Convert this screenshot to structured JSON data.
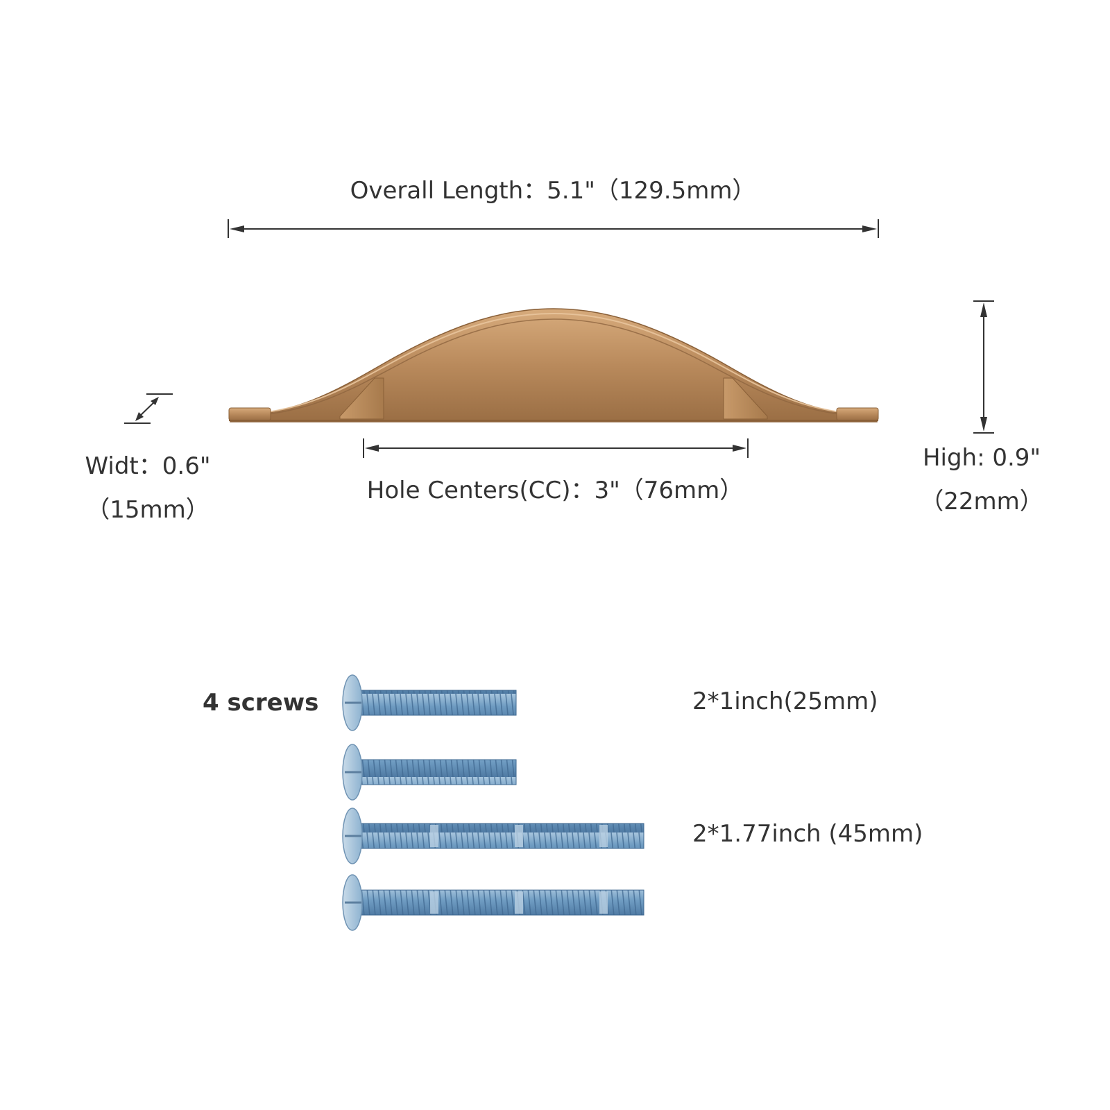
{
  "dimensions": {
    "overall_length": "Overall Length：5.1\"（129.5mm）",
    "hole_centers": "Hole Centers(CC)：3\"（76mm）",
    "width_line1": "Widt：0.6\"",
    "width_line2": "（15mm）",
    "height_line1": "High: 0.9\"",
    "height_line2": "（22mm）"
  },
  "screws": {
    "title": "4 screws",
    "short_label": "2*1inch(25mm)",
    "long_label": "2*1.77inch (45mm)"
  },
  "colors": {
    "text": "#333333",
    "dimension_line": "#333333",
    "handle_finish": "#b98a5c",
    "screw_finish": "#7fa8c9"
  }
}
